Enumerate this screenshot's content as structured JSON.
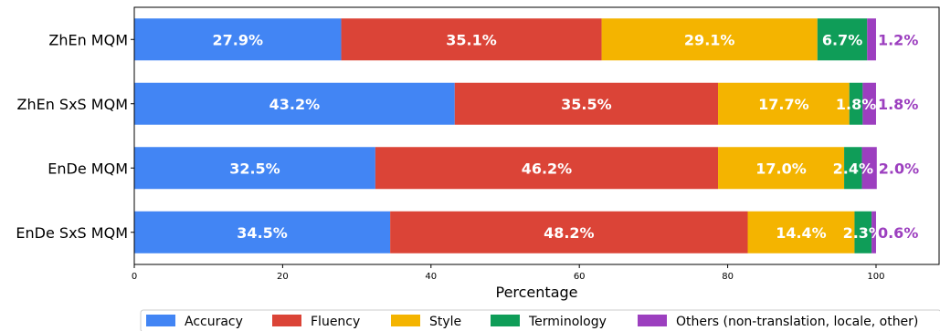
{
  "chart_data": {
    "type": "bar",
    "orientation": "horizontal",
    "stacked": true,
    "categories": [
      "ZhEn MQM",
      "ZhEn SxS MQM",
      "EnDe MQM",
      "EnDe SxS MQM"
    ],
    "series": [
      {
        "name": "Accuracy",
        "color": "#4285F4",
        "values": [
          27.9,
          43.2,
          32.5,
          34.5
        ]
      },
      {
        "name": "Fluency",
        "color": "#DB4437",
        "values": [
          35.1,
          35.5,
          46.2,
          48.2
        ]
      },
      {
        "name": "Style",
        "color": "#F4B400",
        "values": [
          29.1,
          17.7,
          17.0,
          14.4
        ]
      },
      {
        "name": "Terminology",
        "color": "#0F9D58",
        "values": [
          6.7,
          1.8,
          2.4,
          2.3
        ]
      },
      {
        "name": "Others (non-translation, locale, other)",
        "color": "#9C3FBF",
        "values": [
          1.2,
          1.8,
          2.0,
          0.6
        ]
      }
    ],
    "data_labels": [
      [
        "27.9%",
        "35.1%",
        "29.1%",
        "6.7%",
        "1.2%"
      ],
      [
        "43.2%",
        "35.5%",
        "17.7%",
        "1.8%",
        "1.8%"
      ],
      [
        "32.5%",
        "46.2%",
        "17.0%",
        "2.4%",
        "2.0%"
      ],
      [
        "34.5%",
        "48.2%",
        "14.4%",
        "2.3%",
        "0.6%"
      ]
    ],
    "label_colors": [
      "#ffffff",
      "#ffffff",
      "#ffffff",
      "#ffffff",
      "#9C3FBF"
    ],
    "xlabel": "Percentage",
    "ylabel": "",
    "xlim": [
      0,
      108.5
    ],
    "xticks": [
      0,
      20,
      40,
      60,
      80,
      100
    ],
    "xtick_labels": [
      "0",
      "20",
      "40",
      "60",
      "80",
      "100"
    ],
    "grid": false,
    "legend_position": "bottom"
  }
}
